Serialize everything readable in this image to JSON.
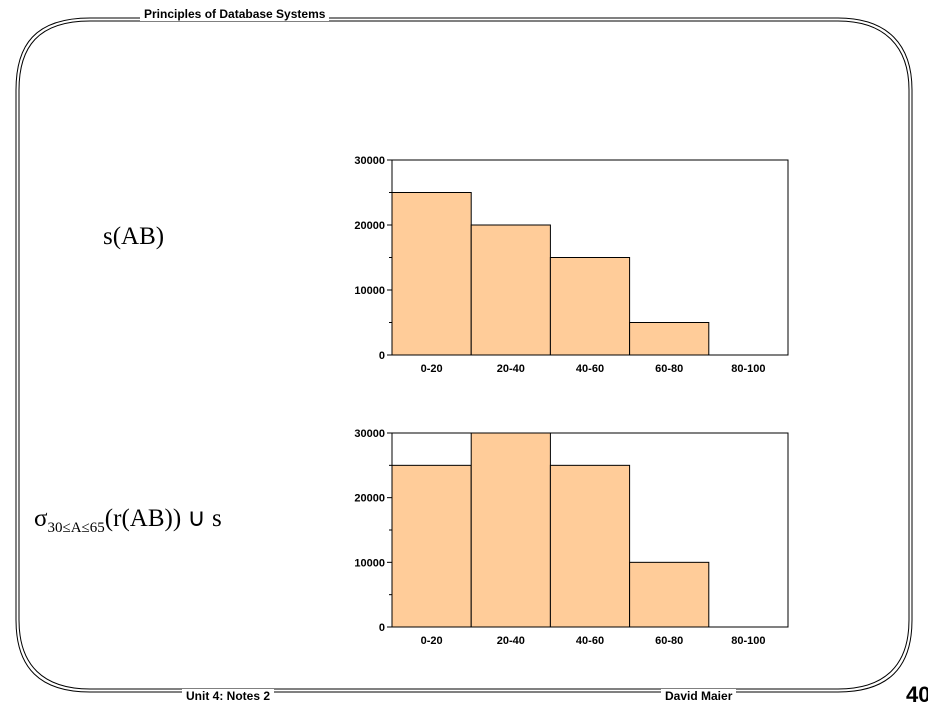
{
  "header": {
    "title": "Principles of Database Systems"
  },
  "footer": {
    "left": "Unit 4: Notes 2",
    "right": "David Maier",
    "page_number": "40"
  },
  "labels": {
    "top": "s(AB)",
    "bottom_sigma": "σ",
    "bottom_subscript": "30≤A≤65",
    "bottom_rest": "(r(AB)) ∪ s"
  },
  "colors": {
    "bar_fill": "#ffcc99",
    "bar_stroke": "#000000"
  },
  "chart_data": [
    {
      "type": "bar",
      "categories": [
        "0-20",
        "20-40",
        "40-60",
        "60-80",
        "80-100"
      ],
      "values": [
        25000,
        20000,
        15000,
        5000,
        0
      ],
      "yticks": [
        "0",
        "10000",
        "20000",
        "30000"
      ],
      "ylim": [
        0,
        30000
      ],
      "title": "",
      "xlabel": "",
      "ylabel": ""
    },
    {
      "type": "bar",
      "categories": [
        "0-20",
        "20-40",
        "40-60",
        "60-80",
        "80-100"
      ],
      "values": [
        25000,
        30000,
        25000,
        10000,
        0
      ],
      "yticks": [
        "0",
        "10000",
        "20000",
        "30000"
      ],
      "ylim": [
        0,
        30000
      ],
      "title": "",
      "xlabel": "",
      "ylabel": ""
    }
  ]
}
